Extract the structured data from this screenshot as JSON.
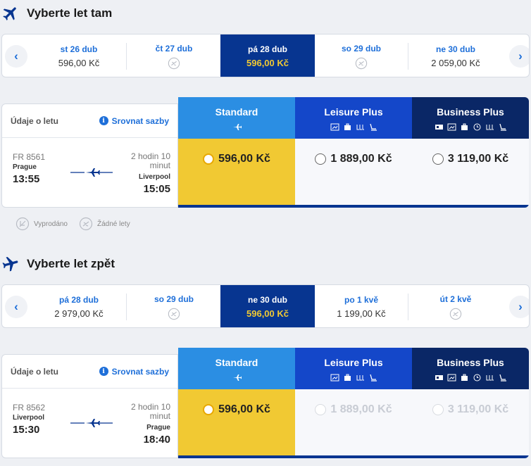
{
  "outbound": {
    "title": "Vyberte let tam",
    "dates": [
      {
        "date": "st 26 dub",
        "price": "596,00 Kč",
        "selected": false,
        "available": true
      },
      {
        "date": "čt 27 dub",
        "price": "",
        "selected": false,
        "available": false
      },
      {
        "date": "pá 28 dub",
        "price": "596,00 Kč",
        "selected": true,
        "available": true
      },
      {
        "date": "so 29 dub",
        "price": "",
        "selected": false,
        "available": false
      },
      {
        "date": "ne 30 dub",
        "price": "2 059,00 Kč",
        "selected": false,
        "available": true
      }
    ],
    "info_label": "Údaje o letu",
    "compare_label": "Srovnat sazby",
    "flight": {
      "number": "FR 8561",
      "dep_city": "Prague",
      "dep_time": "13:55",
      "duration": "2 hodin 10 minut",
      "arr_city": "Liverpool",
      "arr_time": "15:05"
    },
    "fares": [
      {
        "name": "Standard",
        "price": "596,00 Kč"
      },
      {
        "name": "Leisure Plus",
        "price": "1 889,00 Kč"
      },
      {
        "name": "Business Plus",
        "price": "3 119,00 Kč"
      }
    ]
  },
  "legend": {
    "sold_out": "Vyprodáno",
    "no_flights": "Žádné lety"
  },
  "inbound": {
    "title": "Vyberte let zpět",
    "dates": [
      {
        "date": "pá 28 dub",
        "price": "2 979,00 Kč",
        "selected": false,
        "available": true
      },
      {
        "date": "so 29 dub",
        "price": "",
        "selected": false,
        "available": false
      },
      {
        "date": "ne 30 dub",
        "price": "596,00 Kč",
        "selected": true,
        "available": true
      },
      {
        "date": "po 1 kvě",
        "price": "1 199,00 Kč",
        "selected": false,
        "available": true
      },
      {
        "date": "út 2 kvě",
        "price": "",
        "selected": false,
        "available": false
      }
    ],
    "info_label": "Údaje o letu",
    "compare_label": "Srovnat sazby",
    "flight": {
      "number": "FR 8562",
      "dep_city": "Liverpool",
      "dep_time": "15:30",
      "duration": "2 hodin 10 minut",
      "arr_city": "Prague",
      "arr_time": "18:40"
    },
    "fares": [
      {
        "name": "Standard",
        "price": "596,00 Kč"
      },
      {
        "name": "Leisure Plus",
        "price": "1 889,00 Kč"
      },
      {
        "name": "Business Plus",
        "price": "3 119,00 Kč"
      }
    ]
  },
  "colors": {
    "standard_head": "#2b8ee3",
    "leisure_head": "#1447c9",
    "business_head": "#0a2766",
    "selected_date": "#073590",
    "standard_body": "#f1c933"
  }
}
